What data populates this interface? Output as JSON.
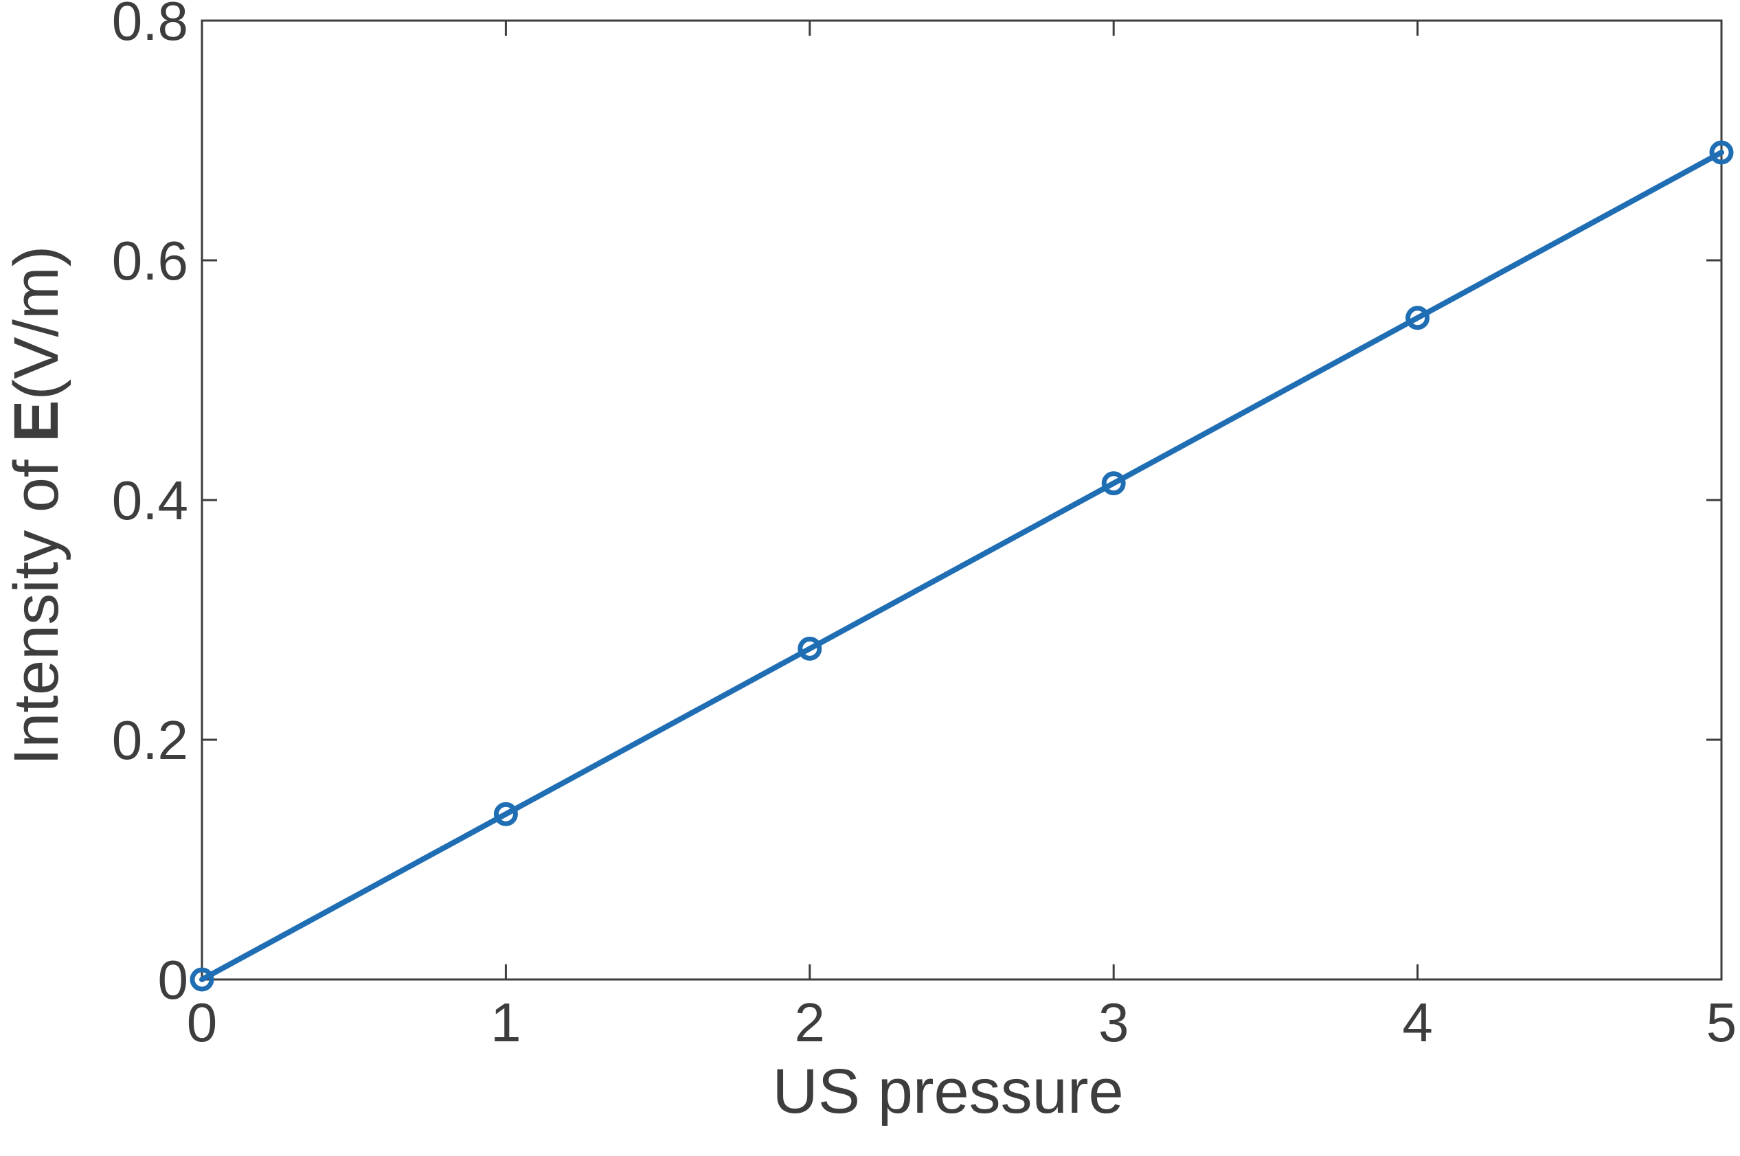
{
  "chart_data": {
    "type": "line",
    "xlabel": "US pressure",
    "ylabel": {
      "prefix": "Intensity of ",
      "bold": "E",
      "suffix": "(V/m)"
    },
    "xlim": [
      0,
      5
    ],
    "ylim": [
      0,
      0.8
    ],
    "xticks": [
      0,
      1,
      2,
      3,
      4,
      5
    ],
    "xtick_labels": [
      "0",
      "1",
      "2",
      "3",
      "4",
      "5"
    ],
    "yticks": [
      0,
      0.2,
      0.4,
      0.6,
      0.8
    ],
    "ytick_labels": [
      "0",
      "0.2",
      "0.4",
      "0.6",
      "0.8"
    ],
    "grid": false,
    "legend": "none",
    "series": [
      {
        "x": [
          0,
          1,
          2,
          3,
          4,
          5
        ],
        "y": [
          0.0,
          0.138,
          0.276,
          0.414,
          0.552,
          0.69
        ],
        "color": "#1f6eb4",
        "marker": "circle"
      }
    ]
  }
}
